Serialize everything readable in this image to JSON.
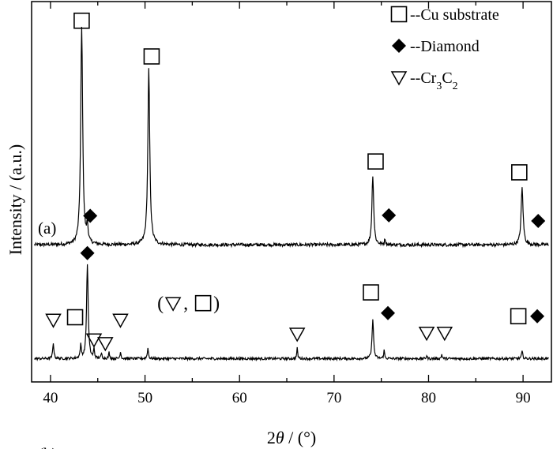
{
  "chart_data": {
    "type": "line",
    "xlabel": "2θ / (°)",
    "xlabel_parts": [
      "2",
      "θ",
      " / (°)"
    ],
    "ylabel": "Intensity / (a.u.)",
    "xlim": [
      38,
      93
    ],
    "xticks": [
      40,
      50,
      60,
      70,
      80,
      90
    ],
    "y_ticks_labeled": false,
    "grid": false,
    "legend_position": "top-right",
    "legend": [
      {
        "symbol": "square",
        "text": "--Cu substrate"
      },
      {
        "symbol": "diamond",
        "text": "--Diamond"
      },
      {
        "symbol": "triangle",
        "text": "--Cr₃C₂",
        "text_parts": [
          "--Cr",
          "3",
          "C",
          "2"
        ]
      }
    ],
    "series": [
      {
        "name": "(a)",
        "baseline": 0.4,
        "noise": 0.008,
        "peaks": [
          {
            "x": 43.3,
            "height": 4.2,
            "width": 0.25
          },
          {
            "x": 43.9,
            "height": 0.32,
            "width": 0.18
          },
          {
            "x": 50.4,
            "height": 3.4,
            "width": 0.25
          },
          {
            "x": 74.1,
            "height": 1.35,
            "width": 0.22
          },
          {
            "x": 75.4,
            "height": 0.12,
            "width": 0.12
          },
          {
            "x": 89.9,
            "height": 1.1,
            "width": 0.25
          }
        ],
        "annotations": [
          {
            "symbol": "square",
            "x": 43.3,
            "y": 4.73
          },
          {
            "symbol": "diamond",
            "x": 44.2,
            "y": 0.96
          },
          {
            "symbol": "square",
            "x": 50.7,
            "y": 4.04
          },
          {
            "symbol": "square",
            "x": 74.4,
            "y": 2.01
          },
          {
            "symbol": "diamond",
            "x": 75.8,
            "y": 0.97
          },
          {
            "symbol": "square",
            "x": 89.6,
            "y": 1.8
          },
          {
            "symbol": "diamond",
            "x": 91.6,
            "y": 0.86
          }
        ]
      },
      {
        "name": "(b)",
        "baseline": -1.8,
        "noise": 0.006,
        "peaks": [
          {
            "x": 40.3,
            "height": 0.3,
            "width": 0.15
          },
          {
            "x": 43.2,
            "height": 0.25,
            "width": 0.15
          },
          {
            "x": 43.9,
            "height": 1.84,
            "width": 0.2
          },
          {
            "x": 44.6,
            "height": 0.18,
            "width": 0.12
          },
          {
            "x": 45.4,
            "height": 0.1,
            "width": 0.12
          },
          {
            "x": 46.2,
            "height": 0.12,
            "width": 0.12
          },
          {
            "x": 47.4,
            "height": 0.14,
            "width": 0.12
          },
          {
            "x": 50.3,
            "height": 0.2,
            "width": 0.15
          },
          {
            "x": 66.1,
            "height": 0.2,
            "width": 0.12
          },
          {
            "x": 74.1,
            "height": 0.78,
            "width": 0.18
          },
          {
            "x": 75.3,
            "height": 0.16,
            "width": 0.12
          },
          {
            "x": 79.8,
            "height": 0.06,
            "width": 0.12
          },
          {
            "x": 81.4,
            "height": 0.08,
            "width": 0.12
          },
          {
            "x": 89.9,
            "height": 0.14,
            "width": 0.15
          }
        ],
        "annotations": [
          {
            "symbol": "triangle",
            "x": 40.3,
            "y": -1.05
          },
          {
            "symbol": "square",
            "x": 42.6,
            "y": -1.0
          },
          {
            "symbol": "diamond",
            "x": 43.9,
            "y": 0.24
          },
          {
            "symbol": "triangle",
            "x": 44.6,
            "y": -1.43
          },
          {
            "symbol": "triangle",
            "x": 45.8,
            "y": -1.5
          },
          {
            "symbol": "triangle",
            "x": 47.4,
            "y": -1.05
          },
          {
            "symbol": "triangle",
            "x": 66.1,
            "y": -1.32
          },
          {
            "symbol": "square",
            "x": 73.9,
            "y": -0.52
          },
          {
            "symbol": "diamond",
            "x": 75.7,
            "y": -0.92
          },
          {
            "symbol": "triangle",
            "x": 79.8,
            "y": -1.3
          },
          {
            "symbol": "triangle",
            "x": 81.7,
            "y": -1.3
          },
          {
            "symbol": "square",
            "x": 89.5,
            "y": -0.98
          },
          {
            "symbol": "diamond",
            "x": 91.5,
            "y": -0.98
          }
        ],
        "text_annotations": [
          {
            "parts": [
              "(",
              "▽",
              ",",
              "□",
              ")"
            ],
            "x": 51.3,
            "y": -0.85
          }
        ]
      }
    ]
  }
}
